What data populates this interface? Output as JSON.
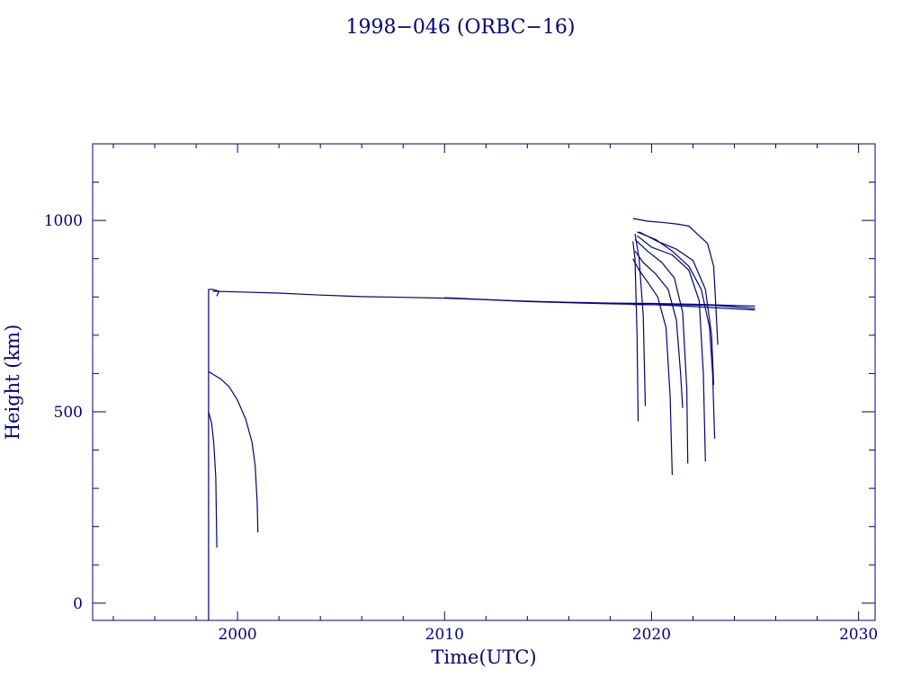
{
  "chart_data": {
    "type": "line",
    "title": "1998−046 (ORBC−16)",
    "xlabel": "Time(UTC)",
    "ylabel": "Height (km)",
    "xlim": [
      1993.0,
      2030.8
    ],
    "ylim": [
      -45,
      1200
    ],
    "x_ticks": [
      2000,
      2010,
      2020,
      2030
    ],
    "x_tick_labels": [
      "2000",
      "2010",
      "2020",
      "2030"
    ],
    "y_ticks": [
      0,
      500,
      1000
    ],
    "y_tick_labels": [
      "0",
      "500",
      "1000"
    ],
    "x_minor_step": 2,
    "y_minor_step": 100,
    "grid": false,
    "color": "#00008b",
    "series": [
      {
        "x": [
          1998.6,
          1998.6,
          1998.8,
          1999.1,
          1999.0
        ],
        "y": [
          -45,
          820,
          820,
          815,
          802
        ]
      },
      {
        "x": [
          1998.8,
          2000.0,
          2002.0,
          2004.0,
          2006.0,
          2008.0,
          2010.0,
          2012.0,
          2014.0,
          2016.0,
          2018.0,
          2020.0,
          2022.0,
          2025.0
        ],
        "y": [
          815,
          813,
          810,
          805,
          801,
          799,
          797,
          793,
          789,
          786,
          784,
          783,
          781,
          776
        ]
      },
      {
        "x": [
          2010.0,
          2014.0,
          2018.0,
          2020.0,
          2022.0,
          2025.0
        ],
        "y": [
          798,
          788,
          782,
          780,
          775,
          766
        ]
      },
      {
        "x": [
          2019.1,
          2021.0,
          2023.0,
          2025.0
        ],
        "y": [
          780,
          780,
          778,
          770
        ]
      },
      {
        "x": [
          1998.6,
          1999.2,
          1999.6,
          2000.0,
          2000.4,
          2000.7,
          2000.85,
          2000.95,
          2000.98
        ],
        "y": [
          605,
          585,
          565,
          530,
          480,
          420,
          360,
          260,
          185
        ]
      },
      {
        "x": [
          1998.6,
          1998.75,
          1998.85,
          1998.95,
          1999.0
        ],
        "y": [
          500,
          470,
          420,
          330,
          145
        ]
      },
      {
        "x": [
          2019.1,
          2019.2,
          2019.3,
          2019.35
        ],
        "y": [
          945,
          900,
          700,
          475
        ]
      },
      {
        "x": [
          2019.2,
          2019.4,
          2019.6,
          2019.7
        ],
        "y": [
          965,
          900,
          750,
          515
        ]
      },
      {
        "x": [
          2019.1,
          2019.4,
          2019.8,
          2020.3,
          2020.7,
          2020.9,
          2021.0
        ],
        "y": [
          900,
          870,
          840,
          800,
          720,
          540,
          335
        ]
      },
      {
        "x": [
          2019.2,
          2019.6,
          2020.2,
          2020.8,
          2021.2,
          2021.4,
          2021.5
        ],
        "y": [
          920,
          890,
          860,
          820,
          740,
          600,
          510
        ]
      },
      {
        "x": [
          2019.2,
          2019.8,
          2020.5,
          2021.1,
          2021.5,
          2021.7,
          2021.75
        ],
        "y": [
          950,
          920,
          890,
          850,
          760,
          560,
          365
        ]
      },
      {
        "x": [
          2019.3,
          2020.0,
          2021.0,
          2021.8,
          2022.3,
          2022.5,
          2022.6
        ],
        "y": [
          960,
          930,
          910,
          870,
          790,
          600,
          370
        ]
      },
      {
        "x": [
          2019.3,
          2020.2,
          2021.0,
          2021.8,
          2022.4,
          2022.8,
          2022.95,
          2023.05
        ],
        "y": [
          970,
          950,
          920,
          880,
          820,
          720,
          600,
          430
        ]
      },
      {
        "x": [
          2019.4,
          2020.3,
          2021.2,
          2022.0,
          2022.6,
          2022.9,
          2023.0
        ],
        "y": [
          970,
          945,
          925,
          895,
          820,
          700,
          570
        ]
      },
      {
        "x": [
          2019.1,
          2019.8,
          2020.5,
          2021.3,
          2021.8,
          2022.3,
          2022.7,
          2023.0,
          2023.1,
          2023.2
        ],
        "y": [
          1005,
          998,
          995,
          990,
          985,
          960,
          940,
          880,
          780,
          675
        ]
      }
    ]
  }
}
